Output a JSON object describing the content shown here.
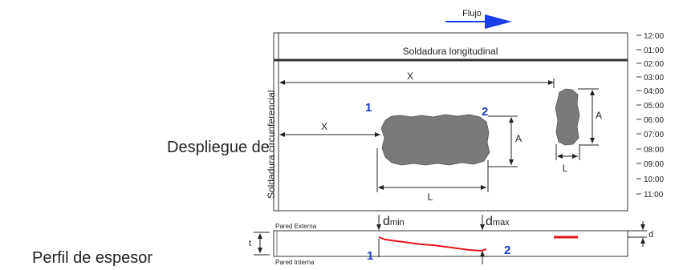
{
  "flow_label": "Flujo",
  "weld_long_label": "Soldadura longitudinal",
  "weld_circ_label": "Soldadura circunferencial",
  "clock_positions": [
    "12:00",
    "01:00",
    "02:00",
    "03:00",
    "04:00",
    "05:00",
    "06:00",
    "07:00",
    "08:00",
    "09:00",
    "10:00",
    "11:00"
  ],
  "dimension_labels": {
    "x": "X",
    "a": "A",
    "l": "L",
    "t": "t",
    "d": "d"
  },
  "point_labels": {
    "p1": "1",
    "p2": "2"
  },
  "wall_labels": {
    "external": "Pared Externa",
    "internal": "Pared Interna"
  },
  "d_min": {
    "base": "d",
    "sub": "min"
  },
  "d_max": {
    "base": "d",
    "sub": "max"
  },
  "side_labels": {
    "unfold": "Despliegue de",
    "profile": "Perfil de espesor"
  },
  "colors": {
    "flow_arrow": "#1a3ee8",
    "point_numbers": "#1f3ec4",
    "profile_line": "#e8141c",
    "defect_fill": "#7a7a7a"
  }
}
